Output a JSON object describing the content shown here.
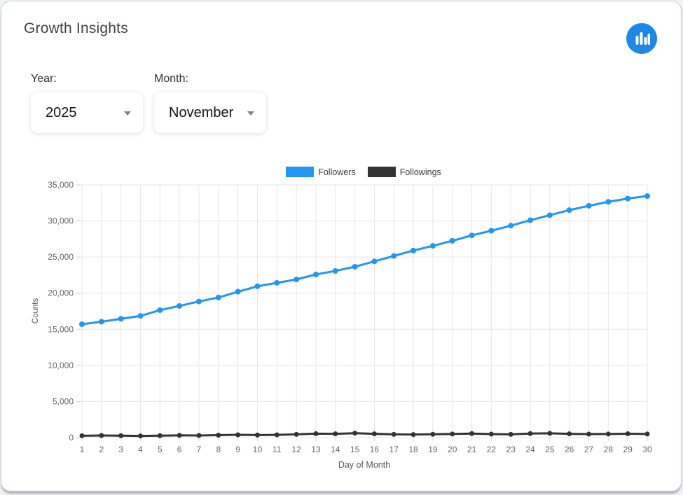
{
  "card": {
    "title": "Growth Insights"
  },
  "header_icon": {
    "name": "bar-chart-icon",
    "background": "#1e88e5",
    "glyph_color": "#ffffff"
  },
  "filters": {
    "year": {
      "label": "Year:",
      "value": "2025"
    },
    "month": {
      "label": "Month:",
      "value": "November"
    }
  },
  "chart_data": {
    "type": "line",
    "title": "",
    "xlabel": "Day of Month",
    "ylabel": "Counts",
    "x": [
      1,
      2,
      3,
      4,
      5,
      6,
      7,
      8,
      9,
      10,
      11,
      12,
      13,
      14,
      15,
      16,
      17,
      18,
      19,
      20,
      21,
      22,
      23,
      24,
      25,
      26,
      27,
      28,
      29,
      30
    ],
    "series": [
      {
        "name": "Followers",
        "color": "#2196f3",
        "values": [
          15700,
          16050,
          16450,
          16850,
          17650,
          18230,
          18850,
          19400,
          20200,
          20950,
          21430,
          21900,
          22590,
          23080,
          23660,
          24400,
          25150,
          25900,
          26550,
          27250,
          28000,
          28650,
          29350,
          30100,
          30800,
          31500,
          32100,
          32650,
          33100,
          33450
        ]
      },
      {
        "name": "Followings",
        "color": "#333333",
        "values": [
          260,
          290,
          270,
          230,
          270,
          310,
          290,
          340,
          390,
          350,
          380,
          450,
          540,
          520,
          610,
          520,
          450,
          420,
          460,
          500,
          560,
          480,
          450,
          560,
          590,
          520,
          480,
          500,
          530,
          500
        ]
      }
    ],
    "ylim": [
      0,
      35000
    ],
    "yticks": [
      0,
      5000,
      10000,
      15000,
      20000,
      25000,
      30000,
      35000
    ],
    "grid": true,
    "legend_position": "top",
    "grid_color": "#e6e6e6",
    "tick_label_color": "#666666",
    "axis_title_color": "#555555"
  }
}
